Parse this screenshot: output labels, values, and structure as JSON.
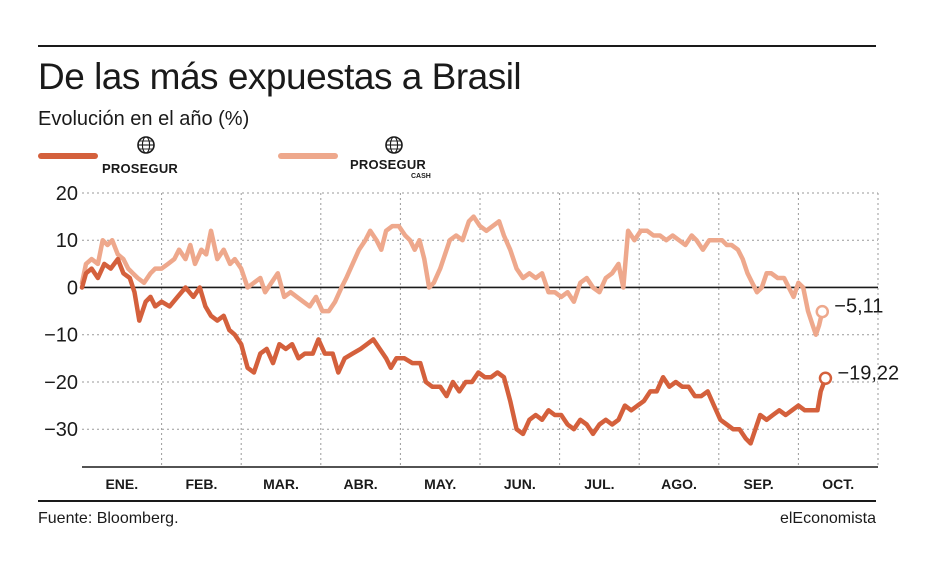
{
  "header": {
    "title": "De las más expuestas a Brasil",
    "subtitle": "Evolución en el año (%)"
  },
  "legend": {
    "items": [
      {
        "brand": "PROSEGUR",
        "brand_sub": "",
        "icon": "globe-icon",
        "color": "#d4603c"
      },
      {
        "brand": "PROSEGUR",
        "brand_sub": "CASH",
        "icon": "globe-icon",
        "color": "#eea88c"
      }
    ]
  },
  "footer": {
    "source": "Fuente: Bloomberg.",
    "brand": "elEconomista"
  },
  "chart_data": {
    "type": "line",
    "title": "De las más expuestas a Brasil",
    "subtitle": "Evolución en el año (%)",
    "xlabel": "",
    "ylabel": "",
    "x_range": [
      0,
      10
    ],
    "ylim": [
      -38,
      20
    ],
    "yticks": [
      20,
      10,
      0,
      -10,
      -20,
      -30
    ],
    "ytick_labels": [
      "20",
      "10",
      "0",
      "−10",
      "−20",
      "−30"
    ],
    "month_labels": [
      "ENE.",
      "FEB.",
      "MAR.",
      "ABR.",
      "MAY.",
      "JUN.",
      "JUL.",
      "AGO.",
      "SEP.",
      "OCT."
    ],
    "grid": true,
    "legend_position": "top-left",
    "series": [
      {
        "name": "PROSEGUR",
        "color": "#d4603c",
        "end_label": "−19,22",
        "end_value": -19.22,
        "points": [
          [
            0.0,
            0
          ],
          [
            0.05,
            3
          ],
          [
            0.12,
            4
          ],
          [
            0.2,
            2
          ],
          [
            0.28,
            5
          ],
          [
            0.36,
            4
          ],
          [
            0.45,
            6
          ],
          [
            0.52,
            3
          ],
          [
            0.6,
            2
          ],
          [
            0.66,
            -1
          ],
          [
            0.72,
            -7
          ],
          [
            0.8,
            -3
          ],
          [
            0.86,
            -2
          ],
          [
            0.92,
            -4
          ],
          [
            1.0,
            -3
          ],
          [
            1.1,
            -4
          ],
          [
            1.2,
            -2
          ],
          [
            1.3,
            0
          ],
          [
            1.4,
            -2
          ],
          [
            1.48,
            0
          ],
          [
            1.55,
            -4
          ],
          [
            1.62,
            -6
          ],
          [
            1.7,
            -7
          ],
          [
            1.78,
            -6
          ],
          [
            1.85,
            -9
          ],
          [
            1.92,
            -10
          ],
          [
            2.0,
            -12
          ],
          [
            2.08,
            -17
          ],
          [
            2.16,
            -18
          ],
          [
            2.24,
            -14
          ],
          [
            2.32,
            -13
          ],
          [
            2.4,
            -16
          ],
          [
            2.48,
            -12
          ],
          [
            2.56,
            -13
          ],
          [
            2.64,
            -12
          ],
          [
            2.72,
            -15
          ],
          [
            2.8,
            -14
          ],
          [
            2.9,
            -14
          ],
          [
            2.97,
            -11
          ],
          [
            3.05,
            -14
          ],
          [
            3.15,
            -14
          ],
          [
            3.22,
            -18
          ],
          [
            3.3,
            -15
          ],
          [
            3.4,
            -14
          ],
          [
            3.5,
            -13
          ],
          [
            3.58,
            -12
          ],
          [
            3.66,
            -11
          ],
          [
            3.74,
            -13
          ],
          [
            3.82,
            -15
          ],
          [
            3.88,
            -17
          ],
          [
            3.95,
            -15
          ],
          [
            4.05,
            -15
          ],
          [
            4.15,
            -16
          ],
          [
            4.25,
            -16
          ],
          [
            4.32,
            -20
          ],
          [
            4.4,
            -21
          ],
          [
            4.5,
            -21
          ],
          [
            4.58,
            -23
          ],
          [
            4.66,
            -20
          ],
          [
            4.74,
            -22
          ],
          [
            4.82,
            -20
          ],
          [
            4.9,
            -20
          ],
          [
            4.98,
            -18
          ],
          [
            5.06,
            -19
          ],
          [
            5.14,
            -19
          ],
          [
            5.22,
            -18
          ],
          [
            5.3,
            -19
          ],
          [
            5.38,
            -24
          ],
          [
            5.46,
            -30
          ],
          [
            5.54,
            -31
          ],
          [
            5.62,
            -28
          ],
          [
            5.7,
            -27
          ],
          [
            5.78,
            -28
          ],
          [
            5.86,
            -26
          ],
          [
            5.94,
            -27
          ],
          [
            6.02,
            -27
          ],
          [
            6.1,
            -29
          ],
          [
            6.18,
            -30
          ],
          [
            6.26,
            -28
          ],
          [
            6.34,
            -29
          ],
          [
            6.42,
            -31
          ],
          [
            6.5,
            -29
          ],
          [
            6.58,
            -28
          ],
          [
            6.66,
            -29
          ],
          [
            6.74,
            -28
          ],
          [
            6.82,
            -25
          ],
          [
            6.9,
            -26
          ],
          [
            6.98,
            -25
          ],
          [
            7.06,
            -24
          ],
          [
            7.14,
            -22
          ],
          [
            7.22,
            -22
          ],
          [
            7.3,
            -19
          ],
          [
            7.38,
            -21
          ],
          [
            7.46,
            -20
          ],
          [
            7.54,
            -21
          ],
          [
            7.62,
            -21
          ],
          [
            7.7,
            -23
          ],
          [
            7.78,
            -23
          ],
          [
            7.86,
            -22
          ],
          [
            7.94,
            -25
          ],
          [
            8.02,
            -28
          ],
          [
            8.1,
            -29
          ],
          [
            8.18,
            -30
          ],
          [
            8.26,
            -30
          ],
          [
            8.34,
            -32
          ],
          [
            8.4,
            -33
          ],
          [
            8.46,
            -30
          ],
          [
            8.52,
            -27
          ],
          [
            8.6,
            -28
          ],
          [
            8.68,
            -27
          ],
          [
            8.76,
            -26
          ],
          [
            8.84,
            -27
          ],
          [
            8.92,
            -26
          ],
          [
            9.0,
            -25
          ],
          [
            9.08,
            -26
          ],
          [
            9.16,
            -26
          ],
          [
            9.24,
            -26
          ],
          [
            9.28,
            -22
          ],
          [
            9.34,
            -19.22
          ]
        ]
      },
      {
        "name": "PROSEGUR CASH",
        "color": "#eea88c",
        "end_label": "−5,11",
        "end_value": -5.11,
        "points": [
          [
            0.0,
            1
          ],
          [
            0.05,
            5
          ],
          [
            0.12,
            6
          ],
          [
            0.2,
            5
          ],
          [
            0.26,
            10
          ],
          [
            0.32,
            9
          ],
          [
            0.38,
            10
          ],
          [
            0.45,
            7
          ],
          [
            0.52,
            6
          ],
          [
            0.58,
            4
          ],
          [
            0.64,
            3
          ],
          [
            0.7,
            2
          ],
          [
            0.78,
            1
          ],
          [
            0.86,
            3
          ],
          [
            0.92,
            4
          ],
          [
            1.0,
            4
          ],
          [
            1.08,
            5
          ],
          [
            1.16,
            6
          ],
          [
            1.22,
            8
          ],
          [
            1.3,
            6
          ],
          [
            1.36,
            9
          ],
          [
            1.42,
            5
          ],
          [
            1.5,
            8
          ],
          [
            1.56,
            7
          ],
          [
            1.62,
            12
          ],
          [
            1.7,
            6
          ],
          [
            1.78,
            8
          ],
          [
            1.86,
            5
          ],
          [
            1.92,
            6
          ],
          [
            2.0,
            4
          ],
          [
            2.08,
            0
          ],
          [
            2.16,
            1
          ],
          [
            2.24,
            2
          ],
          [
            2.3,
            -1
          ],
          [
            2.38,
            1
          ],
          [
            2.46,
            3
          ],
          [
            2.54,
            -2
          ],
          [
            2.62,
            -1
          ],
          [
            2.7,
            -2
          ],
          [
            2.78,
            -3
          ],
          [
            2.86,
            -4
          ],
          [
            2.94,
            -2
          ],
          [
            3.02,
            -5
          ],
          [
            3.1,
            -5
          ],
          [
            3.18,
            -3
          ],
          [
            3.26,
            0
          ],
          [
            3.32,
            2
          ],
          [
            3.4,
            5
          ],
          [
            3.48,
            8
          ],
          [
            3.56,
            10
          ],
          [
            3.62,
            12
          ],
          [
            3.7,
            10
          ],
          [
            3.76,
            8
          ],
          [
            3.82,
            12
          ],
          [
            3.9,
            13
          ],
          [
            3.98,
            13
          ],
          [
            4.06,
            11
          ],
          [
            4.12,
            10
          ],
          [
            4.18,
            8
          ],
          [
            4.24,
            10
          ],
          [
            4.3,
            6
          ],
          [
            4.36,
            0
          ],
          [
            4.42,
            1
          ],
          [
            4.5,
            4
          ],
          [
            4.56,
            7
          ],
          [
            4.62,
            10
          ],
          [
            4.7,
            11
          ],
          [
            4.78,
            10
          ],
          [
            4.86,
            14
          ],
          [
            4.92,
            15
          ],
          [
            5.0,
            13
          ],
          [
            5.08,
            12
          ],
          [
            5.16,
            13
          ],
          [
            5.24,
            14
          ],
          [
            5.3,
            11
          ],
          [
            5.38,
            8
          ],
          [
            5.46,
            4
          ],
          [
            5.54,
            2
          ],
          [
            5.62,
            3
          ],
          [
            5.7,
            2
          ],
          [
            5.78,
            3
          ],
          [
            5.86,
            -1
          ],
          [
            5.94,
            -1
          ],
          [
            6.02,
            -2
          ],
          [
            6.1,
            -1
          ],
          [
            6.18,
            -3
          ],
          [
            6.26,
            1
          ],
          [
            6.34,
            2
          ],
          [
            6.42,
            0
          ],
          [
            6.5,
            -1
          ],
          [
            6.58,
            2
          ],
          [
            6.66,
            3
          ],
          [
            6.74,
            5
          ],
          [
            6.8,
            0
          ],
          [
            6.86,
            12
          ],
          [
            6.94,
            10
          ],
          [
            7.02,
            12
          ],
          [
            7.1,
            12
          ],
          [
            7.18,
            11
          ],
          [
            7.26,
            11
          ],
          [
            7.34,
            10
          ],
          [
            7.42,
            11
          ],
          [
            7.5,
            10
          ],
          [
            7.58,
            9
          ],
          [
            7.66,
            11
          ],
          [
            7.72,
            10
          ],
          [
            7.8,
            8
          ],
          [
            7.88,
            10
          ],
          [
            7.96,
            10
          ],
          [
            8.04,
            10
          ],
          [
            8.1,
            9
          ],
          [
            8.16,
            9
          ],
          [
            8.24,
            8
          ],
          [
            8.3,
            6
          ],
          [
            8.36,
            3
          ],
          [
            8.42,
            1
          ],
          [
            8.48,
            -1
          ],
          [
            8.54,
            0
          ],
          [
            8.6,
            3
          ],
          [
            8.66,
            3
          ],
          [
            8.74,
            2
          ],
          [
            8.82,
            2
          ],
          [
            8.88,
            0
          ],
          [
            8.94,
            -2
          ],
          [
            9.0,
            1
          ],
          [
            9.06,
            0
          ],
          [
            9.12,
            -5
          ],
          [
            9.18,
            -8
          ],
          [
            9.22,
            -10
          ],
          [
            9.26,
            -8
          ],
          [
            9.3,
            -5.11
          ]
        ]
      }
    ]
  }
}
